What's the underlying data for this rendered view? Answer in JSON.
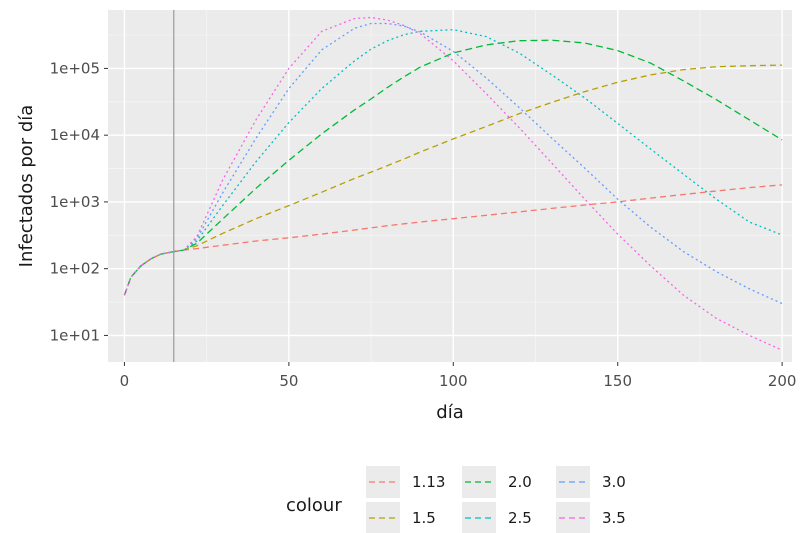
{
  "chart_data": {
    "type": "line",
    "title": "",
    "xlabel": "día",
    "ylabel": "Infectados por día",
    "xlim": [
      -5,
      203
    ],
    "ylim": [
      4,
      750000
    ],
    "y_scale": "log10",
    "x_ticks": [
      0,
      50,
      100,
      150,
      200
    ],
    "y_ticks": [
      10,
      100,
      1000,
      10000,
      100000
    ],
    "y_tick_labels": [
      "1e+01",
      "1e+02",
      "1e+03",
      "1e+04",
      "1e+05"
    ],
    "x_tick_labels": [
      "0",
      "50",
      "100",
      "150",
      "200"
    ],
    "vline_x": 15,
    "grid": true,
    "legend": {
      "title": "colour",
      "position": "bottom"
    },
    "x": [
      0,
      2,
      5,
      8,
      11,
      15,
      18,
      22,
      30,
      40,
      50,
      60,
      70,
      75,
      80,
      85,
      90,
      100,
      110,
      120,
      130,
      140,
      150,
      160,
      170,
      180,
      190,
      200
    ],
    "series": [
      {
        "name": "1.13",
        "color": "#F8766D",
        "dash": "6,4",
        "values": [
          40,
          75,
          110,
          140,
          165,
          180,
          190,
          200,
          225,
          260,
          290,
          330,
          380,
          410,
          440,
          470,
          500,
          560,
          630,
          710,
          800,
          900,
          1000,
          1140,
          1290,
          1460,
          1640,
          1800
        ]
      },
      {
        "name": "1.5",
        "color": "#B79F00",
        "dash": "6,4",
        "values": [
          40,
          75,
          110,
          140,
          165,
          180,
          190,
          220,
          340,
          560,
          880,
          1400,
          2250,
          2800,
          3500,
          4400,
          5600,
          8800,
          13500,
          21000,
          31000,
          45000,
          62000,
          80000,
          96000,
          106000,
          110000,
          112000
        ]
      },
      {
        "name": "2.0",
        "color": "#00BA38",
        "dash": "7,4",
        "values": [
          40,
          75,
          110,
          140,
          165,
          180,
          190,
          240,
          560,
          1600,
          4200,
          10500,
          24000,
          35000,
          52000,
          75000,
          105000,
          170000,
          225000,
          260000,
          265000,
          240000,
          185000,
          120000,
          65000,
          34000,
          17000,
          8500
        ]
      },
      {
        "name": "2.5",
        "color": "#00BFC4",
        "dash": "2,3",
        "values": [
          40,
          75,
          110,
          140,
          165,
          180,
          190,
          260,
          900,
          4000,
          15500,
          50000,
          130000,
          195000,
          260000,
          320000,
          360000,
          380000,
          300000,
          170000,
          80000,
          36000,
          15000,
          6200,
          2600,
          1100,
          500,
          320
        ]
      },
      {
        "name": "3.0",
        "color": "#619CFF",
        "dash": "2,3",
        "values": [
          40,
          75,
          110,
          140,
          165,
          180,
          190,
          280,
          1400,
          9000,
          50000,
          190000,
          400000,
          470000,
          470000,
          430000,
          350000,
          180000,
          72000,
          26000,
          9000,
          3200,
          1100,
          420,
          180,
          90,
          50,
          30
        ]
      },
      {
        "name": "3.5",
        "color": "#F564E3",
        "dash": "2,3",
        "values": [
          40,
          75,
          110,
          140,
          165,
          180,
          190,
          300,
          2200,
          17000,
          100000,
          360000,
          560000,
          580000,
          530000,
          440000,
          330000,
          130000,
          42000,
          13000,
          3800,
          1100,
          330,
          110,
          40,
          18,
          10,
          6
        ]
      }
    ]
  }
}
